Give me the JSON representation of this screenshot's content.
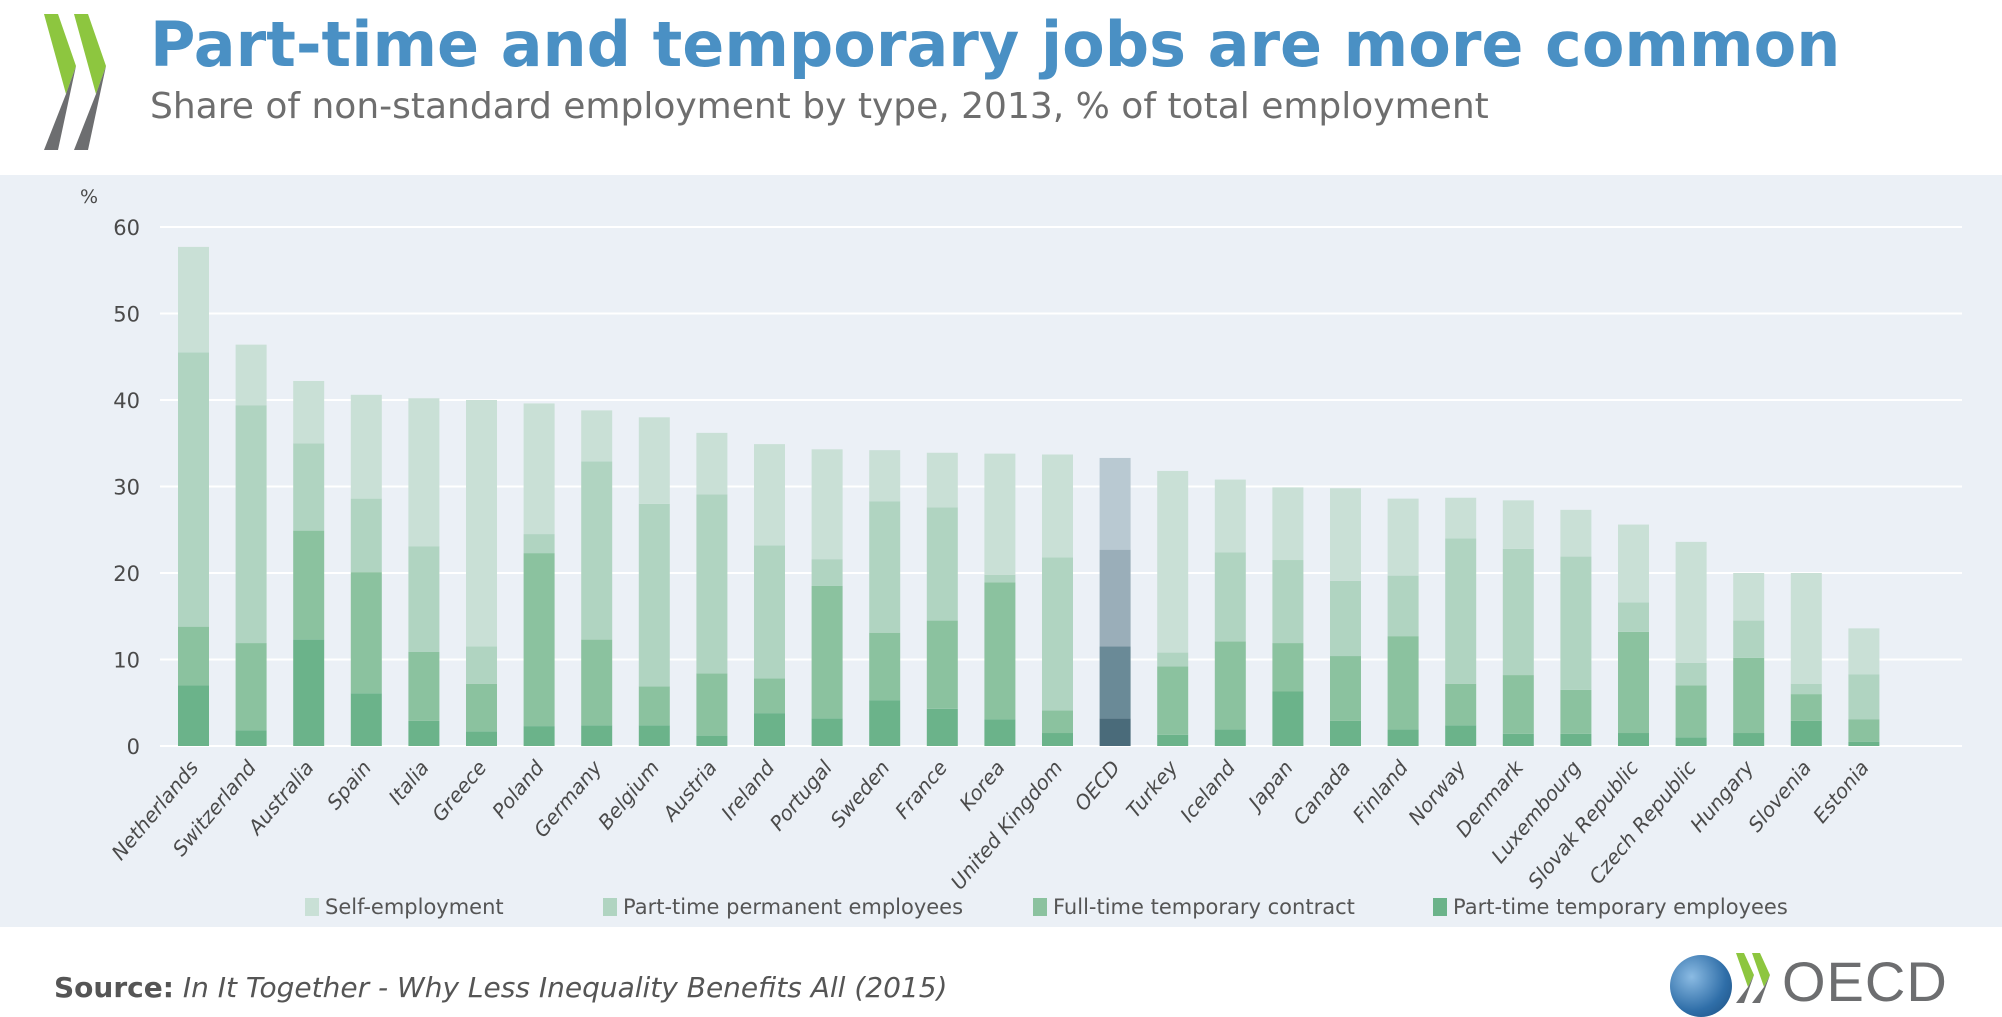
{
  "header": {
    "title": "Part-time and temporary jobs are more common",
    "subtitle": "Share of non-standard employment by type, 2013, % of total employment"
  },
  "colors": {
    "title": "#4a90c4",
    "self_employment": "#c9e0d6",
    "pt_permanent": "#b0d4c1",
    "ft_temporary": "#8bc29f",
    "pt_temporary": "#6bb38a",
    "oecd_self_employment": "#b9c9d2",
    "oecd_pt_permanent": "#9aaeb9",
    "oecd_ft_temporary": "#6a8a97",
    "oecd_pt_temporary": "#4a6b7a",
    "panel_bg": "#ebf0f6",
    "logo_green": "#8dc63f",
    "logo_gray": "#6d6e70"
  },
  "chart_data": {
    "type": "bar",
    "stacked": true,
    "title": "Part-time and temporary jobs are more common",
    "subtitle": "Share of non-standard employment by type, 2013, % of total employment",
    "xlabel": "",
    "ylabel": "%",
    "ylim": [
      0,
      60
    ],
    "yticks": [
      0,
      10,
      20,
      30,
      40,
      50,
      60
    ],
    "grid": true,
    "legend_position": "bottom",
    "highlight_category": "OECD",
    "categories": [
      "Netherlands",
      "Switzerland",
      "Australia",
      "Spain",
      "Italia",
      "Greece",
      "Poland",
      "Germany",
      "Belgium",
      "Austria",
      "Ireland",
      "Portugal",
      "Sweden",
      "France",
      "Korea",
      "United Kingdom",
      "OECD",
      "Turkey",
      "Iceland",
      "Japan",
      "Canada",
      "Finland",
      "Norway",
      "Denmark",
      "Luxembourg",
      "Slovak Republic",
      "Czech Republic",
      "Hungary",
      "Slovenia",
      "Estonia"
    ],
    "series": [
      {
        "name": "Part-time temporary employees",
        "values": [
          7.0,
          1.8,
          12.3,
          6.1,
          2.9,
          1.7,
          2.3,
          2.4,
          2.4,
          1.2,
          3.8,
          3.2,
          5.3,
          4.3,
          3.1,
          1.5,
          3.2,
          1.3,
          1.9,
          6.3,
          2.9,
          1.9,
          2.4,
          1.4,
          1.4,
          1.5,
          1.0,
          1.5,
          2.9,
          0.5
        ]
      },
      {
        "name": "Full-time temporary contract",
        "values": [
          6.8,
          10.1,
          12.6,
          14.0,
          8.0,
          5.5,
          20.0,
          9.9,
          4.5,
          7.2,
          4.0,
          15.3,
          7.8,
          10.2,
          15.8,
          2.6,
          8.3,
          7.9,
          10.2,
          5.6,
          7.5,
          10.8,
          4.8,
          6.8,
          5.1,
          11.7,
          6.0,
          8.7,
          3.1,
          2.6
        ]
      },
      {
        "name": "Part-time permanent employees",
        "values": [
          31.7,
          27.5,
          10.1,
          8.5,
          12.2,
          4.3,
          2.2,
          20.6,
          21.1,
          20.7,
          15.4,
          3.1,
          15.2,
          13.1,
          0.9,
          17.7,
          11.2,
          1.6,
          10.3,
          9.6,
          8.7,
          7.0,
          16.8,
          14.6,
          15.4,
          3.4,
          2.6,
          4.3,
          1.2,
          5.2
        ]
      },
      {
        "name": "Self-employment",
        "values": [
          12.2,
          7.0,
          7.2,
          12.0,
          17.1,
          28.5,
          15.1,
          5.9,
          10.0,
          7.1,
          11.7,
          12.7,
          5.9,
          6.3,
          14.0,
          11.9,
          10.6,
          21.0,
          8.4,
          8.4,
          10.7,
          8.9,
          4.7,
          5.6,
          5.4,
          9.0,
          14.0,
          5.5,
          12.8,
          5.3
        ]
      }
    ]
  },
  "legend": [
    {
      "label": "Self-employment",
      "key": "self_employment"
    },
    {
      "label": "Part-time permanent employees",
      "key": "pt_permanent"
    },
    {
      "label": "Full-time temporary contract",
      "key": "ft_temporary"
    },
    {
      "label": "Part-time temporary employees",
      "key": "pt_temporary"
    }
  ],
  "footer": {
    "source_label": "Source:",
    "source_text": "In It Together - Why Less Inequality Benefits All",
    "source_year": "(2015)",
    "logo_text": "OECD"
  }
}
